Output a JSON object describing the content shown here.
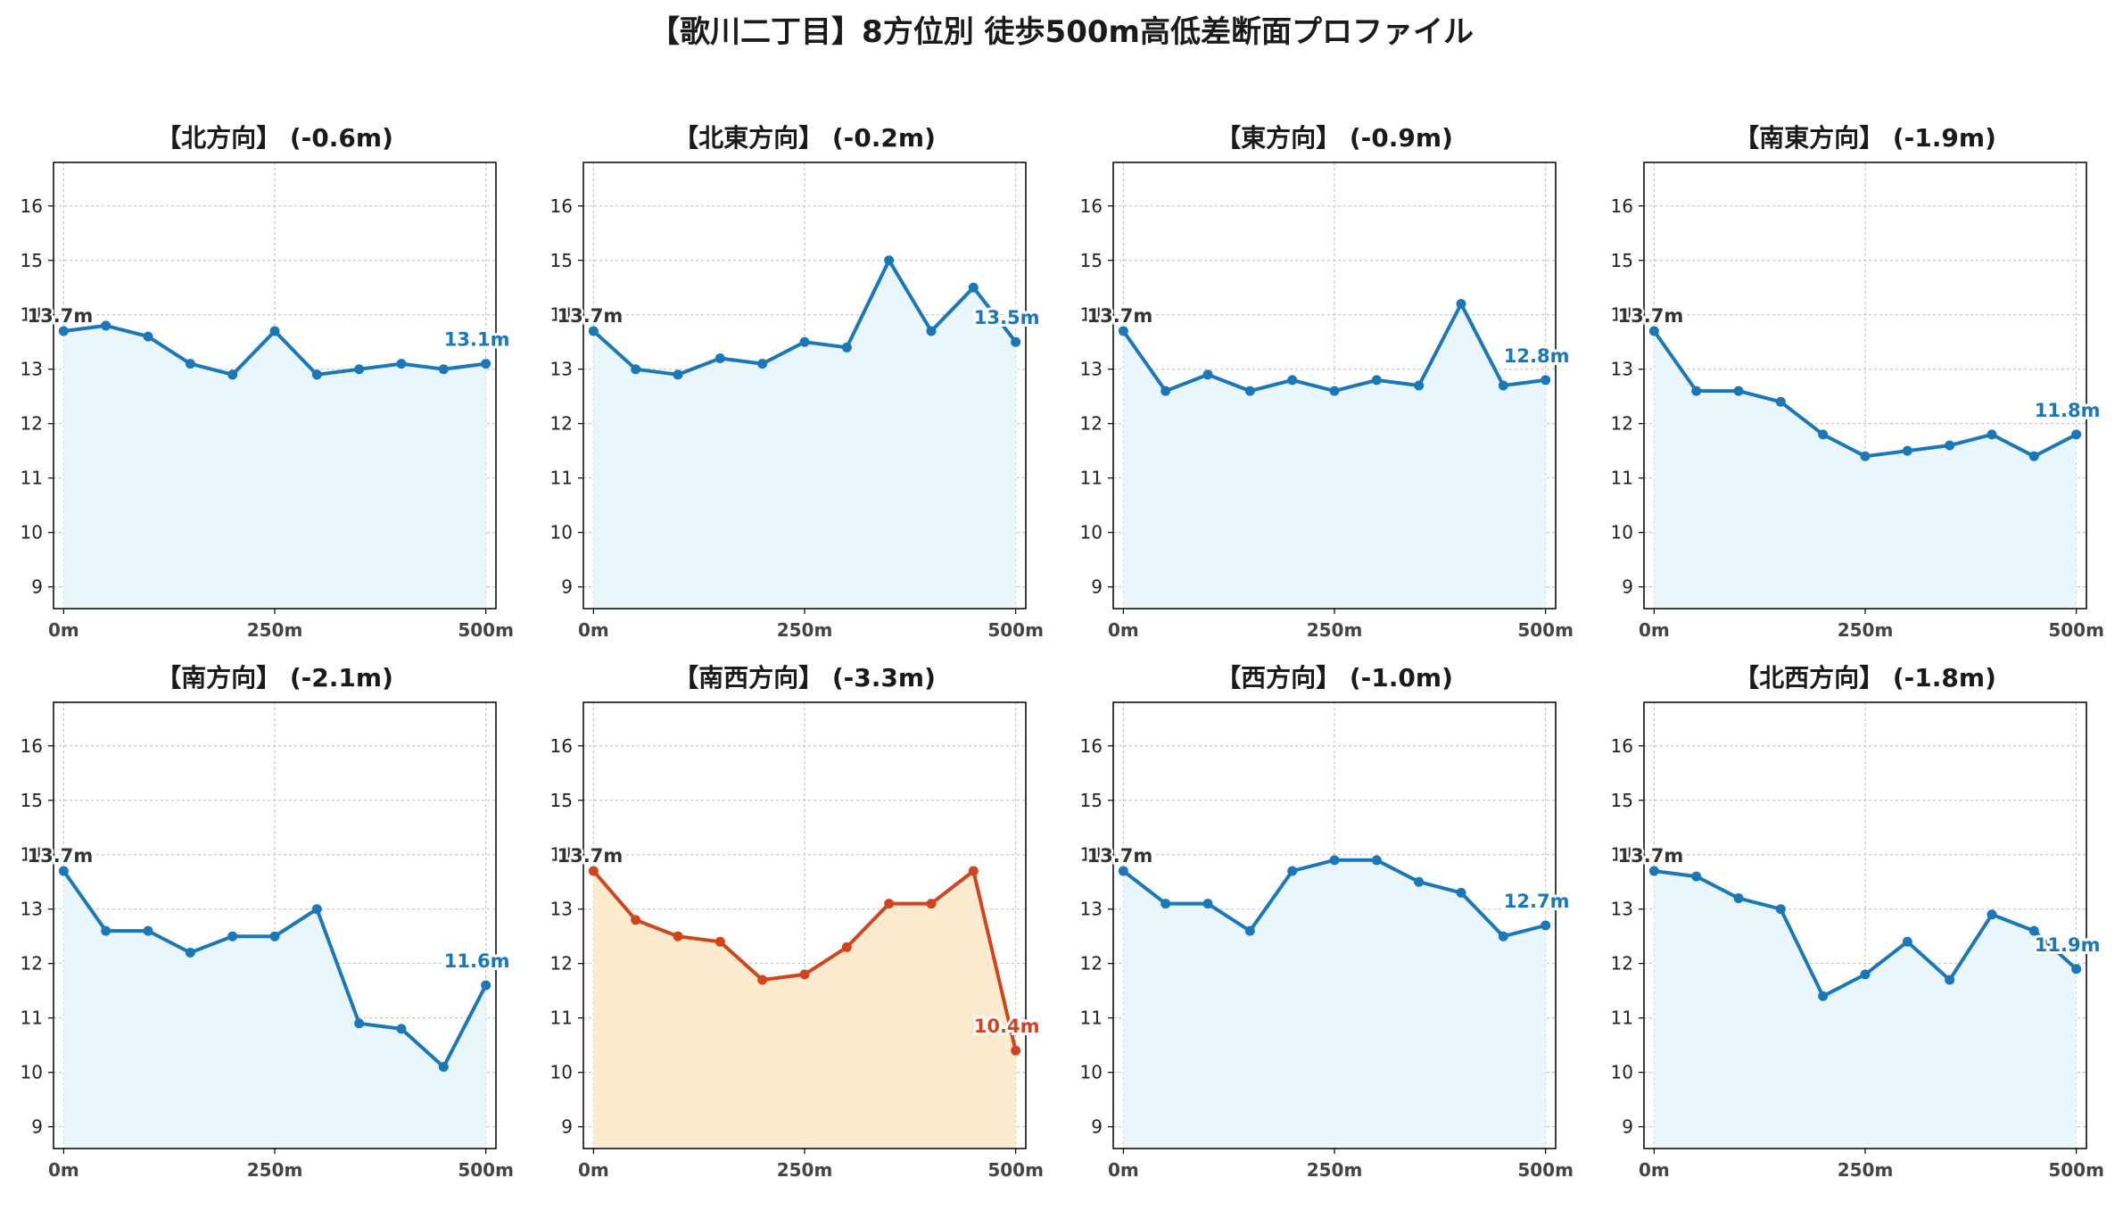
{
  "title": "【歌川二丁目】8方位別 徒歩500m高低差断面プロファイル",
  "colors": {
    "normal_line": "#1a78b8",
    "normal_fill": "#e9f6fb",
    "highlight_line": "#d2451c",
    "highlight_fill": "#fdebd0",
    "grid": "#bbbbbb"
  },
  "chart_data": [
    {
      "type": "line",
      "title": "【北方向】 (-0.6m)",
      "x": [
        0,
        50,
        100,
        150,
        200,
        250,
        300,
        350,
        400,
        450,
        500
      ],
      "values": [
        13.7,
        13.8,
        13.6,
        13.1,
        12.9,
        13.7,
        12.9,
        13.0,
        13.1,
        13.0,
        13.1
      ],
      "start_label": "13.7m",
      "end_label": "13.1m",
      "xticks": [
        "0m",
        "250m",
        "500m"
      ],
      "yticks": [
        "9",
        "10",
        "11",
        "12",
        "13",
        "14",
        "15",
        "16"
      ],
      "ylim": [
        8.6,
        16.8
      ],
      "xlim": [
        -12,
        512
      ],
      "grid": true,
      "highlight": false
    },
    {
      "type": "line",
      "title": "【北東方向】 (-0.2m)",
      "x": [
        0,
        50,
        100,
        150,
        200,
        250,
        300,
        350,
        400,
        450,
        500
      ],
      "values": [
        13.7,
        13.0,
        12.9,
        13.2,
        13.1,
        13.5,
        13.4,
        15.0,
        13.7,
        14.5,
        13.5
      ],
      "start_label": "13.7m",
      "end_label": "13.5m",
      "xticks": [
        "0m",
        "250m",
        "500m"
      ],
      "yticks": [
        "9",
        "10",
        "11",
        "12",
        "13",
        "14",
        "15",
        "16"
      ],
      "ylim": [
        8.6,
        16.8
      ],
      "xlim": [
        -12,
        512
      ],
      "grid": true,
      "highlight": false
    },
    {
      "type": "line",
      "title": "【東方向】 (-0.9m)",
      "x": [
        0,
        50,
        100,
        150,
        200,
        250,
        300,
        350,
        400,
        450,
        500
      ],
      "values": [
        13.7,
        12.6,
        12.9,
        12.6,
        12.8,
        12.6,
        12.8,
        12.7,
        14.2,
        12.7,
        12.8
      ],
      "start_label": "13.7m",
      "end_label": "12.8m",
      "xticks": [
        "0m",
        "250m",
        "500m"
      ],
      "yticks": [
        "9",
        "10",
        "11",
        "12",
        "13",
        "14",
        "15",
        "16"
      ],
      "ylim": [
        8.6,
        16.8
      ],
      "xlim": [
        -12,
        512
      ],
      "grid": true,
      "highlight": false
    },
    {
      "type": "line",
      "title": "【南東方向】 (-1.9m)",
      "x": [
        0,
        50,
        100,
        150,
        200,
        250,
        300,
        350,
        400,
        450,
        500
      ],
      "values": [
        13.7,
        12.6,
        12.6,
        12.4,
        11.8,
        11.4,
        11.5,
        11.6,
        11.8,
        11.4,
        11.8
      ],
      "start_label": "13.7m",
      "end_label": "11.8m",
      "xticks": [
        "0m",
        "250m",
        "500m"
      ],
      "yticks": [
        "9",
        "10",
        "11",
        "12",
        "13",
        "14",
        "15",
        "16"
      ],
      "ylim": [
        8.6,
        16.8
      ],
      "xlim": [
        -12,
        512
      ],
      "grid": true,
      "highlight": false
    },
    {
      "type": "line",
      "title": "【南方向】 (-2.1m)",
      "x": [
        0,
        50,
        100,
        150,
        200,
        250,
        300,
        350,
        400,
        450,
        500
      ],
      "values": [
        13.7,
        12.6,
        12.6,
        12.2,
        12.5,
        12.5,
        13.0,
        10.9,
        10.8,
        10.1,
        11.6
      ],
      "start_label": "13.7m",
      "end_label": "11.6m",
      "xticks": [
        "0m",
        "250m",
        "500m"
      ],
      "yticks": [
        "9",
        "10",
        "11",
        "12",
        "13",
        "14",
        "15",
        "16"
      ],
      "ylim": [
        8.6,
        16.8
      ],
      "xlim": [
        -12,
        512
      ],
      "grid": true,
      "highlight": false
    },
    {
      "type": "line",
      "title": "【南西方向】 (-3.3m)",
      "x": [
        0,
        50,
        100,
        150,
        200,
        250,
        300,
        350,
        400,
        450,
        500
      ],
      "values": [
        13.7,
        12.8,
        12.5,
        12.4,
        11.7,
        11.8,
        12.3,
        13.1,
        13.1,
        13.7,
        10.4
      ],
      "start_label": "13.7m",
      "end_label": "10.4m",
      "xticks": [
        "0m",
        "250m",
        "500m"
      ],
      "yticks": [
        "9",
        "10",
        "11",
        "12",
        "13",
        "14",
        "15",
        "16"
      ],
      "ylim": [
        8.6,
        16.8
      ],
      "xlim": [
        -12,
        512
      ],
      "grid": true,
      "highlight": true
    },
    {
      "type": "line",
      "title": "【西方向】 (-1.0m)",
      "x": [
        0,
        50,
        100,
        150,
        200,
        250,
        300,
        350,
        400,
        450,
        500
      ],
      "values": [
        13.7,
        13.1,
        13.1,
        12.6,
        13.7,
        13.9,
        13.9,
        13.5,
        13.3,
        12.5,
        12.7
      ],
      "start_label": "13.7m",
      "end_label": "12.7m",
      "xticks": [
        "0m",
        "250m",
        "500m"
      ],
      "yticks": [
        "9",
        "10",
        "11",
        "12",
        "13",
        "14",
        "15",
        "16"
      ],
      "ylim": [
        8.6,
        16.8
      ],
      "xlim": [
        -12,
        512
      ],
      "grid": true,
      "highlight": false
    },
    {
      "type": "line",
      "title": "【北西方向】 (-1.8m)",
      "x": [
        0,
        50,
        100,
        150,
        200,
        250,
        300,
        350,
        400,
        450,
        500
      ],
      "values": [
        13.7,
        13.6,
        13.2,
        13.0,
        11.4,
        11.8,
        12.4,
        11.7,
        12.9,
        12.6,
        11.9
      ],
      "start_label": "13.7m",
      "end_label": "11.9m",
      "xticks": [
        "0m",
        "250m",
        "500m"
      ],
      "yticks": [
        "9",
        "10",
        "11",
        "12",
        "13",
        "14",
        "15",
        "16"
      ],
      "ylim": [
        8.6,
        16.8
      ],
      "xlim": [
        -12,
        512
      ],
      "grid": true,
      "highlight": false
    }
  ]
}
